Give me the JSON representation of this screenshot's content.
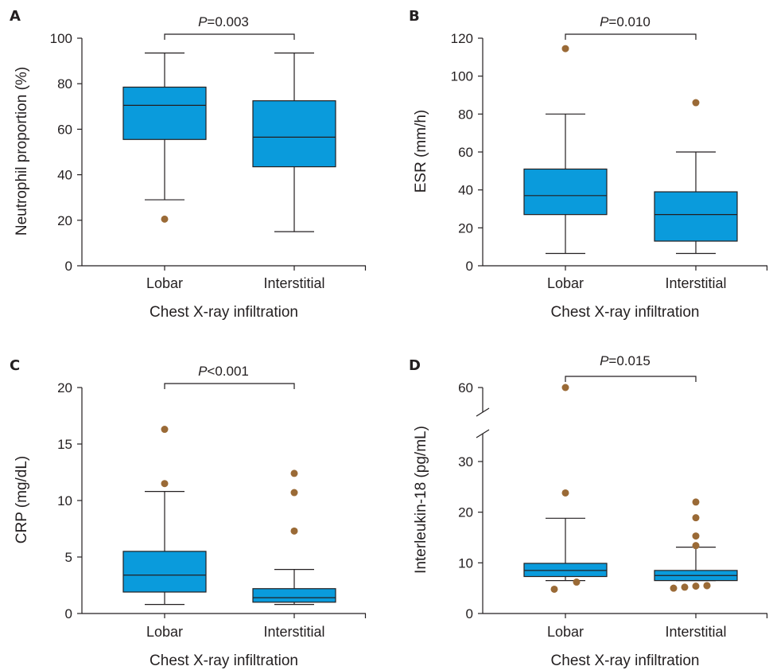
{
  "colors": {
    "box": "#0a9bdc",
    "outlier": "#9a6a36",
    "line": "#231f20"
  },
  "chart_data": [
    {
      "type": "box",
      "panel": "A",
      "ylabel": "Neutrophil proportion (%)",
      "xlabel": "Chest X-ray infiltration",
      "ylim": [
        0,
        100
      ],
      "yticks": [
        0,
        20,
        40,
        60,
        80,
        100
      ],
      "categories": [
        "Lobar",
        "Interstitial"
      ],
      "boxes": [
        {
          "min": 29,
          "q1": 55.5,
          "median": 70.5,
          "q3": 78.5,
          "max": 93.5,
          "outliers": [
            20.5
          ]
        },
        {
          "min": 15,
          "q1": 43.5,
          "median": 56.5,
          "q3": 72.5,
          "max": 93.5,
          "outliers": []
        }
      ],
      "pvalue": {
        "p": "P",
        "text": "=0.003"
      }
    },
    {
      "type": "box",
      "panel": "B",
      "ylabel": "ESR (mm/h)",
      "xlabel": "Chest X-ray infiltration",
      "ylim": [
        0,
        120
      ],
      "yticks": [
        0,
        20,
        40,
        60,
        80,
        100,
        120
      ],
      "categories": [
        "Lobar",
        "Interstitial"
      ],
      "boxes": [
        {
          "min": 6.5,
          "q1": 27,
          "median": 37,
          "q3": 51,
          "max": 80,
          "outliers": [
            114.5
          ]
        },
        {
          "min": 6.5,
          "q1": 13,
          "median": 27,
          "q3": 39,
          "max": 60,
          "outliers": [
            86
          ]
        }
      ],
      "pvalue": {
        "p": "P",
        "text": "=0.010"
      }
    },
    {
      "type": "box",
      "panel": "C",
      "ylabel": "CRP (mg/dL)",
      "xlabel": "Chest X-ray infiltration",
      "ylim": [
        0,
        20
      ],
      "yticks": [
        0,
        5,
        10,
        15,
        20
      ],
      "categories": [
        "Lobar",
        "Interstitial"
      ],
      "boxes": [
        {
          "min": 0.8,
          "q1": 1.9,
          "median": 3.4,
          "q3": 5.5,
          "max": 10.8,
          "outliers": [
            11.5,
            16.3
          ]
        },
        {
          "min": 0.8,
          "q1": 1.0,
          "median": 1.4,
          "q3": 2.2,
          "max": 3.9,
          "outliers": [
            7.3,
            10.7,
            12.4
          ]
        }
      ],
      "pvalue": {
        "p": "P",
        "text": "<0.001"
      }
    },
    {
      "type": "box",
      "panel": "D",
      "ylabel": "Interleukin-18 (pg/mL)",
      "xlabel": "Chest X-ray infiltration",
      "ylim": [
        0,
        60
      ],
      "yticks": [
        0,
        10,
        20,
        30,
        60
      ],
      "axis_break": [
        35,
        55
      ],
      "categories": [
        "Lobar",
        "Interstitial"
      ],
      "boxes": [
        {
          "min": 6.5,
          "q1": 7.3,
          "median": 8.5,
          "q3": 9.9,
          "max": 18.8,
          "outliers": [
            4.8,
            6.2,
            23.8,
            60
          ]
        },
        {
          "min": 6.5,
          "q1": 6.5,
          "median": 7.5,
          "q3": 8.5,
          "max": 13.1,
          "outliers": [
            5.0,
            5.2,
            5.4,
            5.5,
            5.5,
            13.4,
            15.3,
            18.9,
            22
          ]
        }
      ],
      "pvalue": {
        "p": "P",
        "text": "=0.015"
      }
    }
  ]
}
